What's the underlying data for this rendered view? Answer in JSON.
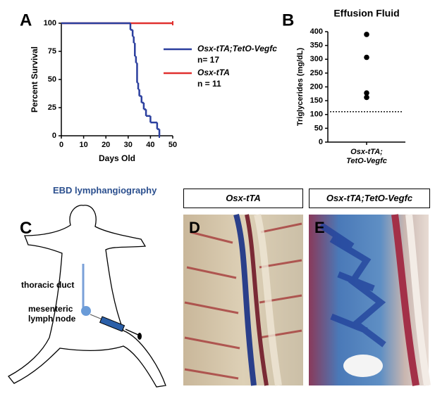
{
  "chart_data": [
    {
      "type": "survival",
      "panel": "A",
      "ylabel": "Percent Survival",
      "xlabel": "Days Old",
      "xlim": [
        0,
        50
      ],
      "xticks": [
        0,
        10,
        20,
        30,
        40,
        50
      ],
      "ylim": [
        0,
        100
      ],
      "yticks": [
        0,
        25,
        50,
        75,
        100
      ],
      "series": [
        {
          "name": "Osx-tTA;TetO-Vegfc",
          "annotation": "n= 17",
          "color": "#2b3f9e",
          "x": [
            0,
            31,
            32,
            32.5,
            33,
            33.5,
            34,
            34.5,
            35,
            36,
            37,
            38,
            40,
            43,
            44
          ],
          "values": [
            100,
            94.1,
            88.2,
            82.4,
            70.6,
            64.7,
            47.1,
            41.2,
            35.3,
            29.4,
            23.5,
            17.6,
            11.8,
            5.9,
            0
          ]
        },
        {
          "name": "Osx-tTA",
          "annotation": "n = 11",
          "color": "#e0302f",
          "x": [
            0,
            50
          ],
          "values": [
            100,
            100
          ]
        }
      ]
    },
    {
      "type": "strip",
      "panel": "B",
      "title": "Effusion Fluid",
      "ylabel": "Triglycerides (mg/dL)",
      "categories": [
        "Osx-tTA;\nTetO-Vegfc"
      ],
      "values": [
        [
          390,
          307,
          178,
          162
        ]
      ],
      "color": "#000000",
      "ylim": [
        0,
        400
      ],
      "yticks": [
        0,
        50,
        100,
        150,
        200,
        250,
        300,
        350,
        400
      ],
      "reference_line": 110
    }
  ],
  "lymphangiography": {
    "panel": "C",
    "title": "EBD lymphangiography",
    "labels": [
      "thoracic duct",
      "mesenteric\nlymph node"
    ]
  },
  "photos": [
    {
      "panel": "D",
      "title": "Osx-tTA"
    },
    {
      "panel": "E",
      "title": "Osx-tTA;TetO-Vegfc"
    }
  ]
}
